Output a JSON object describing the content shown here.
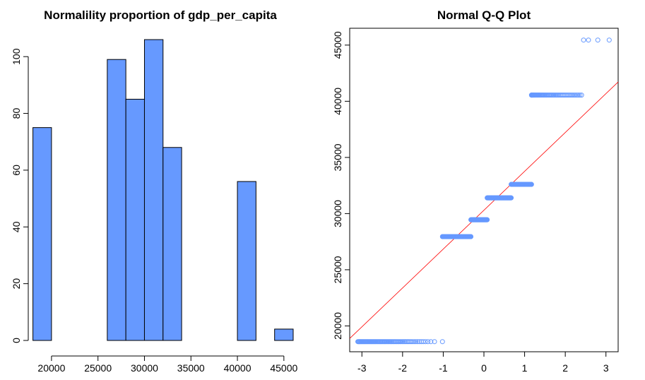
{
  "colors": {
    "bar_fill": "#6699ff",
    "point_stroke": "#6699ff",
    "qq_line": "#ff0000",
    "axis": "#000000"
  },
  "chart_data": [
    {
      "type": "bar",
      "title": "Normalility proportion of gdp_per_capita",
      "xlabel": "",
      "ylabel": "",
      "xlim": [
        17500,
        46000
      ],
      "ylim": [
        0,
        110
      ],
      "xticks": [
        20000,
        25000,
        30000,
        35000,
        40000,
        45000
      ],
      "yticks": [
        0,
        20,
        40,
        60,
        80,
        100
      ],
      "xtick_labels": [
        "20000",
        "25000",
        "30000",
        "35000",
        "40000",
        "45000"
      ],
      "ytick_labels": [
        "0",
        "20",
        "40",
        "60",
        "80",
        "100"
      ],
      "bins": [
        {
          "start": 18000,
          "end": 20000,
          "count": 75
        },
        {
          "start": 20000,
          "end": 22000,
          "count": 0
        },
        {
          "start": 22000,
          "end": 24000,
          "count": 0
        },
        {
          "start": 24000,
          "end": 26000,
          "count": 0
        },
        {
          "start": 26000,
          "end": 28000,
          "count": 99
        },
        {
          "start": 28000,
          "end": 30000,
          "count": 85
        },
        {
          "start": 30000,
          "end": 32000,
          "count": 106
        },
        {
          "start": 32000,
          "end": 34000,
          "count": 68
        },
        {
          "start": 34000,
          "end": 36000,
          "count": 0
        },
        {
          "start": 36000,
          "end": 38000,
          "count": 0
        },
        {
          "start": 38000,
          "end": 40000,
          "count": 0
        },
        {
          "start": 40000,
          "end": 42000,
          "count": 56
        },
        {
          "start": 42000,
          "end": 44000,
          "count": 0
        },
        {
          "start": 44000,
          "end": 46000,
          "count": 4
        }
      ],
      "grid": false
    },
    {
      "type": "scatter",
      "title": "Normal Q-Q Plot",
      "xlabel": "",
      "ylabel": "",
      "xlim": [
        -3.3,
        3.3
      ],
      "ylim": [
        17700,
        46500
      ],
      "xticks": [
        -3,
        -2,
        -1,
        0,
        1,
        2,
        3
      ],
      "yticks": [
        20000,
        25000,
        30000,
        35000,
        40000,
        45000
      ],
      "xtick_labels": [
        "-3",
        "-2",
        "-1",
        "0",
        "1",
        "2",
        "3"
      ],
      "ytick_labels": [
        "20000",
        "25000",
        "30000",
        "35000",
        "40000",
        "45000"
      ],
      "groups": [
        {
          "y": 18600,
          "x_from": -3.1,
          "x_to": -1.02,
          "count": 75
        },
        {
          "y": 27950,
          "x_from": -1.02,
          "x_to": -0.32,
          "count": 99
        },
        {
          "y": 29450,
          "x_from": -0.32,
          "x_to": 0.08,
          "count": 85
        },
        {
          "y": 31400,
          "x_from": 0.08,
          "x_to": 0.67,
          "count": 106
        },
        {
          "y": 32600,
          "x_from": 0.67,
          "x_to": 1.17,
          "count": 68
        },
        {
          "y": 40550,
          "x_from": 1.17,
          "x_to": 2.4,
          "count": 56
        },
        {
          "y": 45450,
          "x": [
            2.45,
            2.57,
            2.8,
            3.08
          ]
        }
      ],
      "qq_line": {
        "intercept": 30300,
        "slope": 3460
      },
      "grid": false
    }
  ]
}
